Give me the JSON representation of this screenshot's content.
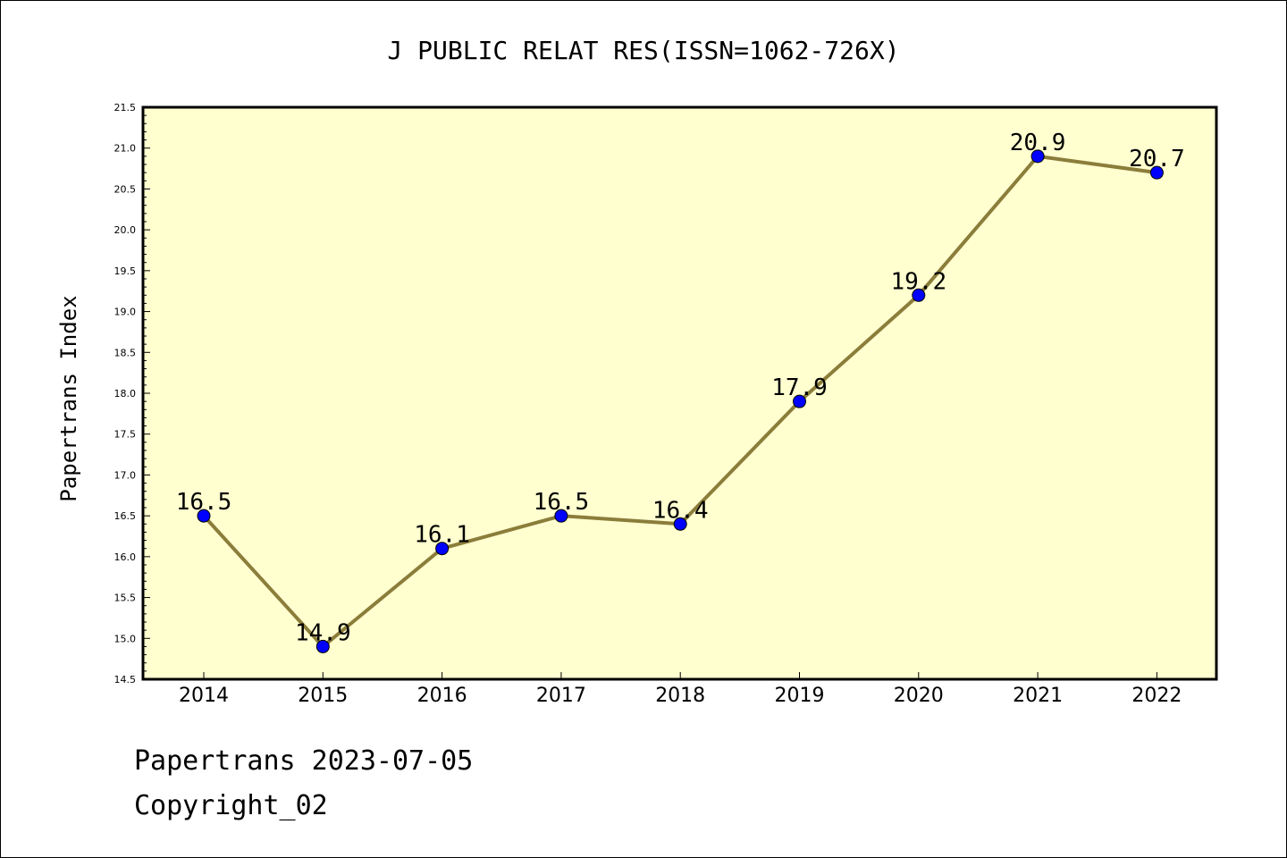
{
  "chart_data": {
    "type": "line",
    "title": "J PUBLIC RELAT RES(ISSN=1062-726X)",
    "ylabel": "Papertrans Index",
    "xlabel": "",
    "categories": [
      "2014",
      "2015",
      "2016",
      "2017",
      "2018",
      "2019",
      "2020",
      "2021",
      "2022"
    ],
    "values": [
      16.5,
      14.9,
      16.1,
      16.5,
      16.4,
      17.9,
      19.2,
      20.9,
      20.7
    ],
    "data_labels": [
      "16.5",
      "14.9",
      "16.1",
      "16.5",
      "16.4",
      "17.9",
      "19.2",
      "20.9",
      "20.7"
    ],
    "ylim": [
      14.5,
      21.5
    ],
    "yticks": [
      "14.5",
      "15.0",
      "15.5",
      "16.0",
      "16.5",
      "17.0",
      "17.5",
      "18.0",
      "18.5",
      "19.0",
      "19.5",
      "20.0",
      "20.5",
      "21.0",
      "21.5"
    ],
    "grid": false,
    "colors": {
      "plot_background": "#ffffd0",
      "line": "#8b7d3a",
      "marker": "#0000ff"
    }
  },
  "footer": {
    "line1": "Papertrans 2023-07-05",
    "line2": "Copyright_02"
  }
}
